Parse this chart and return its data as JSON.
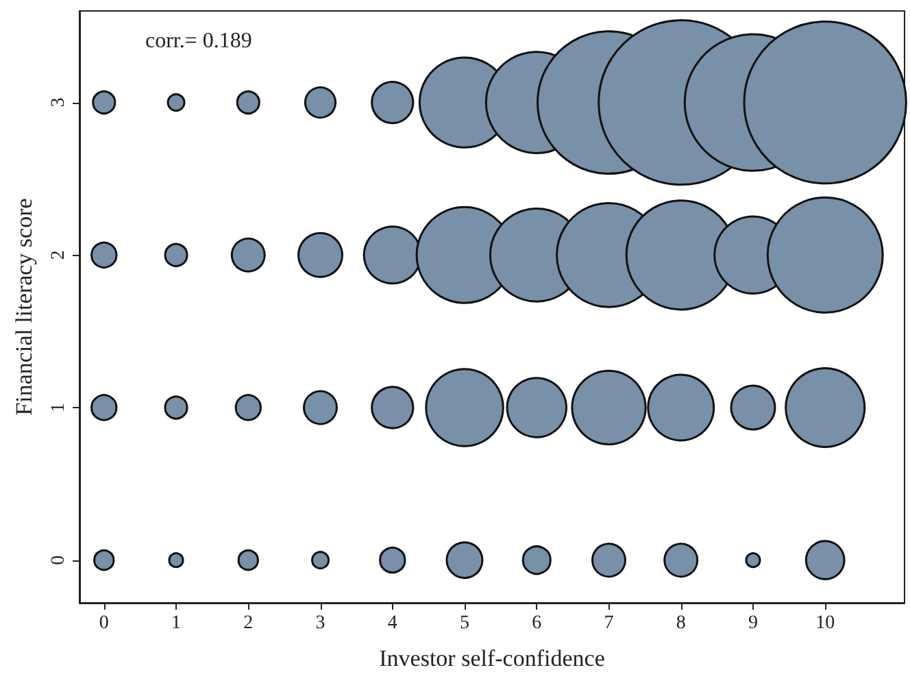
{
  "chart_data": {
    "type": "bubble",
    "xlabel": "Investor self-confidence",
    "ylabel": "Financial literacy score",
    "annotations": [
      "corr.= 0.189"
    ],
    "x": [
      0,
      1,
      2,
      3,
      4,
      5,
      6,
      7,
      8,
      9,
      10,
      0,
      1,
      2,
      3,
      4,
      5,
      6,
      7,
      8,
      9,
      10,
      0,
      1,
      2,
      3,
      4,
      5,
      6,
      7,
      8,
      9,
      10,
      0,
      1,
      2,
      3,
      4,
      5,
      6,
      7,
      8,
      9,
      10
    ],
    "values": [
      0,
      0,
      0,
      0,
      0,
      0,
      0,
      0,
      0,
      0,
      0,
      1,
      1,
      1,
      1,
      1,
      1,
      1,
      1,
      1,
      1,
      1,
      2,
      2,
      2,
      2,
      2,
      2,
      2,
      2,
      2,
      2,
      2,
      3,
      3,
      3,
      3,
      3,
      3,
      3,
      3,
      3,
      3,
      3
    ],
    "sizes": [
      0.014,
      0.007,
      0.014,
      0.01,
      0.023,
      0.047,
      0.028,
      0.04,
      0.04,
      0.007,
      0.054,
      0.023,
      0.018,
      0.023,
      0.04,
      0.063,
      0.22,
      0.13,
      0.2,
      0.16,
      0.071,
      0.23,
      0.023,
      0.018,
      0.04,
      0.071,
      0.12,
      0.34,
      0.32,
      0.4,
      0.44,
      0.22,
      0.49,
      0.018,
      0.01,
      0.018,
      0.034,
      0.063,
      0.3,
      0.38,
      0.75,
      1,
      0.69,
      0.97
    ],
    "color": "#7890a8",
    "xlim": [
      -0.34,
      11.1
    ],
    "xticks": [
      0,
      1,
      2,
      3,
      4,
      5,
      6,
      7,
      8,
      9,
      10
    ],
    "ylim": [
      -0.28,
      3.6
    ],
    "yticks": [
      0,
      1,
      2,
      3
    ],
    "grid": false
  }
}
